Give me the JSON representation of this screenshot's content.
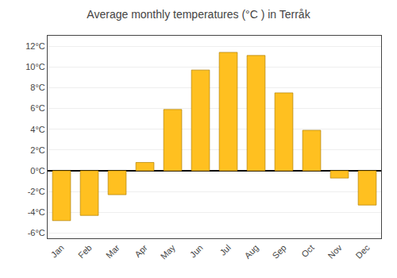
{
  "chart_data": {
    "type": "bar",
    "title": "Average monthly temperatures (°C ) in Terråk",
    "categories": [
      "Jan",
      "Feb",
      "Mar",
      "Apr",
      "May",
      "Jun",
      "Jul",
      "Aug",
      "Sep",
      "Oct",
      "Nov",
      "Dec"
    ],
    "values": [
      -4.8,
      -4.3,
      -2.3,
      0.8,
      5.9,
      9.7,
      11.4,
      11.1,
      7.5,
      3.9,
      -0.7,
      -3.3
    ],
    "color": "#FFC020",
    "ylim": [
      -6.5,
      13
    ],
    "yticks": [
      {
        "value": -6,
        "label": "-6°C"
      },
      {
        "value": -4,
        "label": "-4°C"
      },
      {
        "value": -2,
        "label": "-2°C"
      },
      {
        "value": 0,
        "label": "0°C"
      },
      {
        "value": 2,
        "label": "2°C"
      },
      {
        "value": 4,
        "label": "4°C"
      },
      {
        "value": 6,
        "label": "6°C"
      },
      {
        "value": 8,
        "label": "8°C"
      },
      {
        "value": 10,
        "label": "10°C"
      },
      {
        "value": 12,
        "label": "12°C"
      }
    ],
    "grid": true
  }
}
